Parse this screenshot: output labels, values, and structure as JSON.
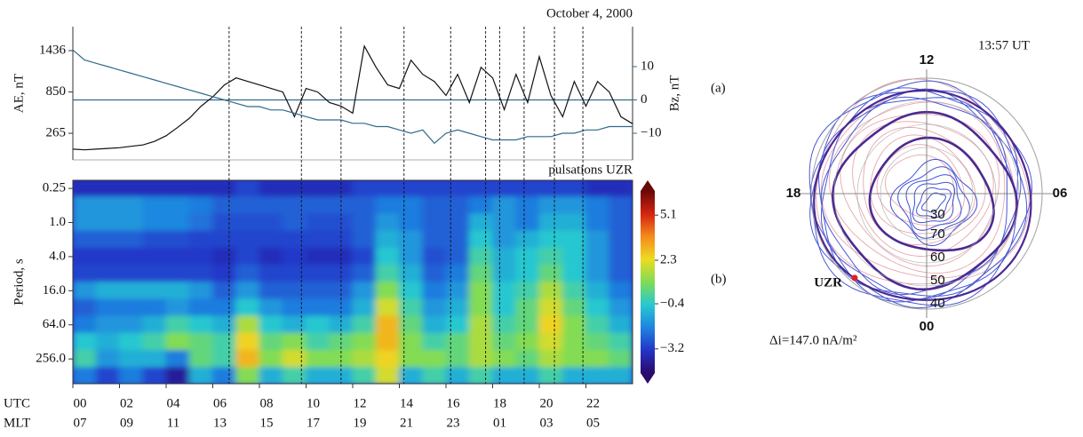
{
  "chart_data": [
    {
      "type": "line",
      "title": "October 4, 2000",
      "panel_label": "(a)",
      "x": [
        0,
        0.5,
        1,
        1.5,
        2,
        2.5,
        3,
        3.5,
        4,
        4.5,
        5,
        5.5,
        6,
        6.5,
        7,
        7.5,
        8,
        8.5,
        9,
        9.5,
        10,
        10.5,
        11,
        11.5,
        12,
        12.5,
        13,
        13.5,
        14,
        14.5,
        15,
        15.5,
        16,
        16.5,
        17,
        17.5,
        18,
        18.5,
        19,
        19.5,
        20,
        20.5,
        21,
        21.5,
        22,
        22.5,
        23,
        23.5,
        24
      ],
      "xlim": [
        0,
        24
      ],
      "series": [
        {
          "name": "AE, nT",
          "color": "#111111",
          "values": [
            40,
            30,
            40,
            50,
            60,
            80,
            100,
            150,
            230,
            350,
            480,
            650,
            780,
            950,
            1050,
            1000,
            950,
            900,
            850,
            500,
            900,
            850,
            700,
            650,
            550,
            1500,
            1200,
            950,
            900,
            1300,
            1100,
            1000,
            800,
            1100,
            700,
            1200,
            1050,
            600,
            1100,
            700,
            1350,
            800,
            500,
            1000,
            650,
            1000,
            850,
            500,
            400
          ]
        },
        {
          "name": "Bz, nT",
          "color": "#2f6b8c",
          "axis": "y2",
          "values": [
            15,
            12,
            11,
            10,
            9,
            8,
            7,
            6,
            5,
            4,
            3,
            2,
            1,
            0,
            -1,
            -2,
            -2,
            -3,
            -3,
            -4,
            -5,
            -6,
            -6,
            -6,
            -7,
            -7,
            -8,
            -8,
            -9,
            -10,
            -9,
            -13,
            -10,
            -9,
            -10,
            -11,
            -12,
            -12,
            -12,
            -11,
            -11,
            -11,
            -10,
            -10,
            -9,
            -9,
            -8,
            -8,
            -8
          ]
        }
      ],
      "ylim": [
        -112,
        1776
      ],
      "yticks": [
        265,
        850,
        1436
      ],
      "y2lim": [
        -18,
        22
      ],
      "y2ticks": [
        {
          "value": -10,
          "label": "−10"
        },
        0,
        10
      ],
      "y2_zero_line": true,
      "event_times": [
        6.7,
        9.8,
        11.5,
        14.2,
        16.2,
        17.7,
        18.3,
        19.35,
        20.65,
        21.87
      ]
    },
    {
      "type": "heatmap",
      "title": "pulsations UZR",
      "panel_label": "(b)",
      "ylabel": "Period, s",
      "xbins": [
        0,
        1,
        2,
        3,
        4,
        5,
        6,
        7,
        8,
        9,
        10,
        11,
        12,
        13,
        14,
        15,
        16,
        17,
        18,
        19,
        20,
        21,
        22,
        23,
        24
      ],
      "xlim": [
        0,
        24
      ],
      "xlabel": "UTC",
      "xticks": [
        {
          "value": 0,
          "label": "00"
        },
        {
          "value": 2,
          "label": "02"
        },
        {
          "value": 4,
          "label": "04"
        },
        {
          "value": 6,
          "label": "06"
        },
        {
          "value": 8,
          "label": "08"
        },
        {
          "value": 10,
          "label": "10"
        },
        {
          "value": 12,
          "label": "12"
        },
        {
          "value": 14,
          "label": "14"
        },
        {
          "value": 16,
          "label": "16"
        },
        {
          "value": 18,
          "label": "18"
        },
        {
          "value": 20,
          "label": "20"
        },
        {
          "value": 22,
          "label": "22"
        }
      ],
      "x2label": "MLT",
      "x2ticks": [
        {
          "value": 0,
          "label": "07"
        },
        {
          "value": 2,
          "label": "09"
        },
        {
          "value": 4,
          "label": "11"
        },
        {
          "value": 6,
          "label": "13"
        },
        {
          "value": 8,
          "label": "15"
        },
        {
          "value": 10,
          "label": "17"
        },
        {
          "value": 12,
          "label": "19"
        },
        {
          "value": 14,
          "label": "21"
        },
        {
          "value": 16,
          "label": "23"
        },
        {
          "value": 18,
          "label": "01"
        },
        {
          "value": 20,
          "label": "03"
        },
        {
          "value": 22,
          "label": "05"
        }
      ],
      "periods": [
        0.25,
        0.5,
        1,
        2,
        4,
        8,
        16,
        32,
        64,
        128,
        256,
        512
      ],
      "yscale": "log",
      "yinvert": true,
      "ylim": [
        0.18,
        700
      ],
      "yticks": [
        0.25,
        {
          "value": 1,
          "label": "1.0"
        },
        {
          "value": 4,
          "label": "4.0"
        },
        {
          "value": 16,
          "label": "16.0"
        },
        {
          "value": 64,
          "label": "64.0"
        },
        {
          "value": 256,
          "label": "256.0"
        }
      ],
      "values": [
        [
          -3.5,
          -3.5,
          -3.5,
          -3.5,
          -3.5,
          -3.5,
          -3.5,
          -3,
          -3.5,
          -3.5,
          -3.5,
          -3.5,
          -3,
          -3,
          -3,
          -3,
          -3,
          -3,
          -3,
          -3,
          -3,
          -3,
          -3.5,
          -3.5
        ],
        [
          -1.5,
          -1.5,
          -1.5,
          -1.8,
          -1.8,
          -2,
          -2.5,
          -2.5,
          -2.5,
          -2.5,
          -2.5,
          -2.5,
          -2.5,
          -2,
          -2,
          -2.5,
          -2.5,
          -2,
          -1.5,
          -2,
          -1.5,
          -1.5,
          -2,
          -2.5
        ],
        [
          -1.5,
          -1.5,
          -1.5,
          -1.8,
          -1.8,
          -2.2,
          -2.8,
          -2.8,
          -2.8,
          -2.5,
          -2.8,
          -2.8,
          -2.5,
          -1.5,
          -2,
          -2.5,
          -2.5,
          -1,
          -1.5,
          -2,
          -1,
          -1,
          -2,
          -2.5
        ],
        [
          -2.5,
          -2.5,
          -2.5,
          -2.8,
          -2.8,
          -3,
          -3,
          -3,
          -3,
          -3,
          -3,
          -3,
          -2.5,
          -1,
          -1.5,
          -2.5,
          -2.5,
          -0.5,
          -1.5,
          -1,
          -0.5,
          -0.5,
          -1.5,
          -2.5
        ],
        [
          -3.2,
          -3.2,
          -3.2,
          -3.2,
          -3.2,
          -3.2,
          -3.5,
          -3,
          -3.5,
          -3.2,
          -3.5,
          -3.5,
          -3,
          -0.5,
          -1.5,
          -2.8,
          -2.5,
          0,
          -1,
          -0.5,
          0,
          -0.5,
          -1.5,
          -2.5
        ],
        [
          -3,
          -3,
          -3,
          -3,
          -3,
          -3,
          -3.2,
          -2.5,
          -3,
          -3,
          -3,
          -3,
          -2.5,
          0,
          -1,
          -2.5,
          -2,
          0.5,
          -1,
          -0.5,
          0.5,
          -0.5,
          -1.5,
          -2.5
        ],
        [
          -1.5,
          -1,
          -1,
          -1,
          -1,
          -1.5,
          -2.5,
          -1.5,
          -2.5,
          -2.5,
          -2.5,
          -2.5,
          -1.5,
          1,
          -0.5,
          -2,
          -1.5,
          1,
          -0.5,
          0,
          1.5,
          0,
          -1,
          -2
        ],
        [
          -2.5,
          -2,
          -2,
          -2,
          -1.5,
          -2,
          -2,
          -0.5,
          -1.5,
          -2,
          -2,
          -2,
          -1,
          2,
          0,
          -1.5,
          -1,
          1,
          -0.5,
          0.5,
          2,
          0.5,
          -0.5,
          -1.5
        ],
        [
          -2,
          -1.5,
          -1.5,
          -1,
          0,
          -0.5,
          -1,
          1.5,
          -0.5,
          -1,
          -0.5,
          -1,
          0,
          3,
          0.5,
          -1,
          -0.5,
          1.5,
          0,
          0.5,
          2.5,
          1,
          0,
          -1
        ],
        [
          -0.5,
          -1,
          -0.5,
          0,
          1,
          0.5,
          0,
          2.5,
          0.5,
          1,
          0,
          0.5,
          1,
          3,
          1,
          0,
          0.5,
          1.5,
          0.5,
          1,
          2,
          1,
          0.5,
          0
        ],
        [
          0,
          -1.5,
          -1,
          -1,
          -2,
          0.5,
          0,
          3,
          1,
          2,
          1,
          1,
          1.5,
          2.5,
          1,
          1,
          0.5,
          1.5,
          1,
          0.5,
          1.5,
          1,
          1,
          0.5
        ],
        [
          -2,
          -3,
          -2,
          -3,
          -4,
          -1,
          -2,
          1,
          -1,
          0,
          -1,
          -1,
          0,
          2,
          -1,
          0,
          -1,
          0,
          -1,
          -1,
          0,
          -1,
          -1,
          -1
        ]
      ],
      "clim": [
        -4.7,
        6.6
      ],
      "cticks": [
        5.1,
        2.3,
        {
          "value": -0.4,
          "label": "−0.4"
        },
        {
          "value": -3.2,
          "label": "−3.2"
        }
      ],
      "colormap": [
        "#2a0b6b",
        "#2334c8",
        "#1f84e0",
        "#27c9d0",
        "#7fdc55",
        "#eedb22",
        "#f48a1c",
        "#d3240f",
        "#6a0808"
      ]
    },
    {
      "type": "polar",
      "title": "13:57 UT",
      "theta_ticks": [
        {
          "value": 12,
          "label": "12"
        },
        {
          "value": 6,
          "label": "06"
        },
        {
          "value": 0,
          "label": "00"
        },
        {
          "value": 18,
          "label": "18"
        }
      ],
      "rlim": [
        90,
        40
      ],
      "rticks": [
        70,
        60,
        50,
        40
      ],
      "inner_label": "30",
      "station": {
        "name": "UZR",
        "lat": 42,
        "mlt": 21.3,
        "color": "#e0201e"
      },
      "annotation": "Δi=147.0 nA/m²"
    }
  ]
}
